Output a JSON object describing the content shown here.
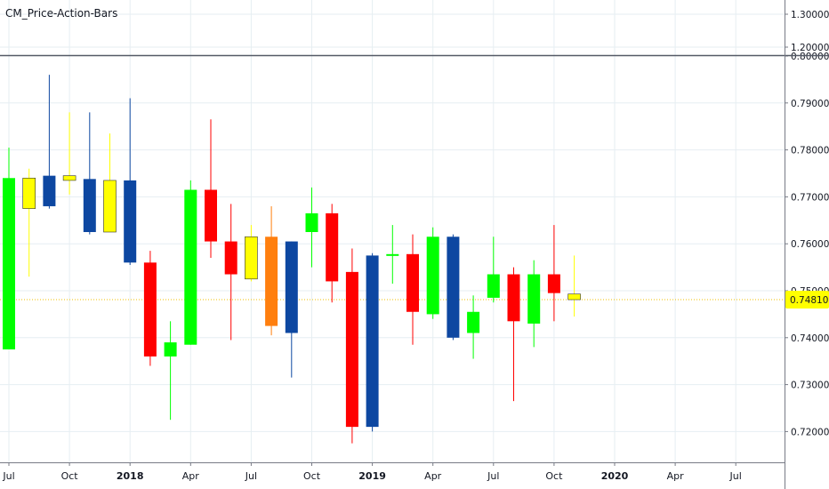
{
  "indicator_label": "CM_Price-Action-Bars",
  "colors": {
    "green": "#00ff00",
    "red": "#ff0000",
    "blue": "#0d47a1",
    "yellow": "#ffff00",
    "orange": "#ff7f0e",
    "grid": "#e6eef2",
    "axis_text": "#131722",
    "price_line": "#f0c000"
  },
  "chart_data": {
    "type": "candlestick",
    "interval": "monthly",
    "x_tick_labels": [
      {
        "label": "Jul",
        "month": "2017-07",
        "bold": false
      },
      {
        "label": "Oct",
        "month": "2017-10",
        "bold": false
      },
      {
        "label": "2018",
        "month": "2018-01",
        "bold": true
      },
      {
        "label": "Apr",
        "month": "2018-04",
        "bold": false
      },
      {
        "label": "Jul",
        "month": "2018-07",
        "bold": false
      },
      {
        "label": "Oct",
        "month": "2018-10",
        "bold": false
      },
      {
        "label": "2019",
        "month": "2019-01",
        "bold": true
      },
      {
        "label": "Apr",
        "month": "2019-04",
        "bold": false
      },
      {
        "label": "Jul",
        "month": "2019-07",
        "bold": false
      },
      {
        "label": "Oct",
        "month": "2019-10",
        "bold": false
      },
      {
        "label": "2020",
        "month": "2020-01",
        "bold": true
      },
      {
        "label": "Apr",
        "month": "2020-04",
        "bold": false
      },
      {
        "label": "Jul",
        "month": "2020-07",
        "bold": false
      }
    ],
    "y_tick_labels": [
      "0.72000",
      "0.73000",
      "0.74000",
      "0.75000",
      "0.76000",
      "0.77000",
      "0.78000",
      "0.79000",
      "0.80000"
    ],
    "upper_scale_labels": [
      "1.30000",
      "1.20000"
    ],
    "y_range": [
      0.7145,
      0.8035
    ],
    "current_price": 0.7481,
    "current_price_label": "0.74810",
    "candles": [
      {
        "month": "2017-07",
        "open": 0.7375,
        "high": 0.7805,
        "low": 0.7375,
        "close": 0.774,
        "color": "green"
      },
      {
        "month": "2017-08",
        "open": 0.7675,
        "high": 0.776,
        "low": 0.753,
        "close": 0.774,
        "color": "yellow"
      },
      {
        "month": "2017-09",
        "open": 0.7745,
        "high": 0.796,
        "low": 0.7675,
        "close": 0.768,
        "color": "blue"
      },
      {
        "month": "2017-10",
        "open": 0.7745,
        "high": 0.788,
        "low": 0.7705,
        "close": 0.7735,
        "color": "yellow"
      },
      {
        "month": "2017-11",
        "open": 0.7738,
        "high": 0.788,
        "low": 0.762,
        "close": 0.7625,
        "color": "blue"
      },
      {
        "month": "2017-12",
        "open": 0.7625,
        "high": 0.7835,
        "low": 0.7625,
        "close": 0.7735,
        "color": "yellow"
      },
      {
        "month": "2018-01",
        "open": 0.7735,
        "high": 0.791,
        "low": 0.7555,
        "close": 0.756,
        "color": "blue"
      },
      {
        "month": "2018-02",
        "open": 0.756,
        "high": 0.7585,
        "low": 0.734,
        "close": 0.736,
        "color": "red"
      },
      {
        "month": "2018-03",
        "open": 0.736,
        "high": 0.7435,
        "low": 0.7225,
        "close": 0.739,
        "color": "green"
      },
      {
        "month": "2018-04",
        "open": 0.7385,
        "high": 0.7735,
        "low": 0.7385,
        "close": 0.7715,
        "color": "green"
      },
      {
        "month": "2018-05",
        "open": 0.7715,
        "high": 0.7865,
        "low": 0.757,
        "close": 0.7605,
        "color": "red"
      },
      {
        "month": "2018-06",
        "open": 0.7605,
        "high": 0.7685,
        "low": 0.7395,
        "close": 0.7535,
        "color": "red"
      },
      {
        "month": "2018-07",
        "open": 0.7525,
        "high": 0.764,
        "low": 0.752,
        "close": 0.7615,
        "color": "yellow"
      },
      {
        "month": "2018-08",
        "open": 0.7615,
        "high": 0.768,
        "low": 0.7405,
        "close": 0.7425,
        "color": "orange"
      },
      {
        "month": "2018-09",
        "open": 0.7605,
        "high": 0.7605,
        "low": 0.7315,
        "close": 0.741,
        "color": "blue"
      },
      {
        "month": "2018-10",
        "open": 0.7625,
        "high": 0.772,
        "low": 0.755,
        "close": 0.7665,
        "color": "green"
      },
      {
        "month": "2018-11",
        "open": 0.7665,
        "high": 0.7685,
        "low": 0.7475,
        "close": 0.752,
        "color": "red"
      },
      {
        "month": "2018-12",
        "open": 0.754,
        "high": 0.759,
        "low": 0.7175,
        "close": 0.721,
        "color": "red"
      },
      {
        "month": "2019-01",
        "open": 0.7575,
        "high": 0.758,
        "low": 0.72,
        "close": 0.721,
        "color": "blue"
      },
      {
        "month": "2019-02",
        "open": 0.7575,
        "high": 0.764,
        "low": 0.7515,
        "close": 0.7578,
        "color": "green"
      },
      {
        "month": "2019-03",
        "open": 0.7578,
        "high": 0.762,
        "low": 0.7385,
        "close": 0.7455,
        "color": "red"
      },
      {
        "month": "2019-04",
        "open": 0.745,
        "high": 0.7635,
        "low": 0.744,
        "close": 0.7615,
        "color": "green"
      },
      {
        "month": "2019-05",
        "open": 0.7615,
        "high": 0.762,
        "low": 0.7395,
        "close": 0.74,
        "color": "blue"
      },
      {
        "month": "2019-06",
        "open": 0.741,
        "high": 0.749,
        "low": 0.7355,
        "close": 0.7455,
        "color": "green"
      },
      {
        "month": "2019-07",
        "open": 0.7485,
        "high": 0.7615,
        "low": 0.7475,
        "close": 0.7535,
        "color": "green"
      },
      {
        "month": "2019-08",
        "open": 0.7535,
        "high": 0.755,
        "low": 0.7265,
        "close": 0.7435,
        "color": "red"
      },
      {
        "month": "2019-09",
        "open": 0.743,
        "high": 0.7565,
        "low": 0.738,
        "close": 0.7535,
        "color": "green"
      },
      {
        "month": "2019-10",
        "open": 0.7535,
        "high": 0.764,
        "low": 0.7435,
        "close": 0.7495,
        "color": "red"
      },
      {
        "month": "2019-11",
        "open": 0.7493,
        "high": 0.7575,
        "low": 0.7445,
        "close": 0.7481,
        "color": "yellow"
      }
    ]
  }
}
